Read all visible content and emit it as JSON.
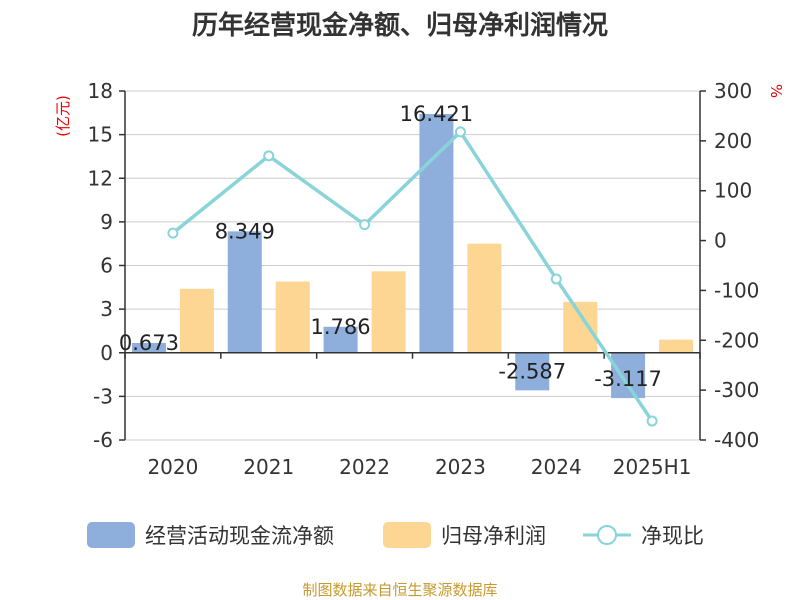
{
  "chart_data": {
    "type": "bar",
    "title": "历年经营现金净额、归母净利润情况",
    "categories": [
      "2020",
      "2021",
      "2022",
      "2023",
      "2024",
      "2025H1"
    ],
    "series": [
      {
        "name": "经营活动现金流净额",
        "type": "bar",
        "axis": "left",
        "color": "#8eaedc",
        "values": [
          0.673,
          8.349,
          1.786,
          16.421,
          -2.587,
          -3.117
        ],
        "labels": [
          "0.673",
          "8.349",
          "1.786",
          "16.421",
          "-2.587",
          "-3.117"
        ]
      },
      {
        "name": "归母净利润",
        "type": "bar",
        "axis": "left",
        "color": "#fdd694",
        "values": [
          4.4,
          4.9,
          5.6,
          7.5,
          3.5,
          0.9
        ]
      },
      {
        "name": "净现比",
        "type": "line",
        "axis": "right",
        "color": "#88d4d9",
        "values": [
          15,
          170,
          32,
          218,
          -77,
          -362
        ]
      }
    ],
    "left_axis": {
      "unit": "(亿元)",
      "ylim": [
        -6,
        18
      ],
      "ticks": [
        18,
        15,
        12,
        9,
        6,
        3,
        0,
        -3,
        -6
      ],
      "tick_labels": [
        "18",
        "15",
        "12",
        "9",
        "6",
        "3",
        "0",
        "-3",
        "-6"
      ]
    },
    "right_axis": {
      "unit": "%",
      "ylim": [
        -400,
        300
      ],
      "ticks": [
        300,
        200,
        100,
        0,
        -100,
        -200,
        -300,
        -400
      ],
      "tick_labels": [
        "300",
        "200",
        "100",
        "0",
        "-100",
        "-200",
        "-300",
        "-400"
      ]
    },
    "grid": true,
    "legend_position": "bottom"
  },
  "footer": {
    "source": "制图数据来自恒生聚源数据库"
  }
}
